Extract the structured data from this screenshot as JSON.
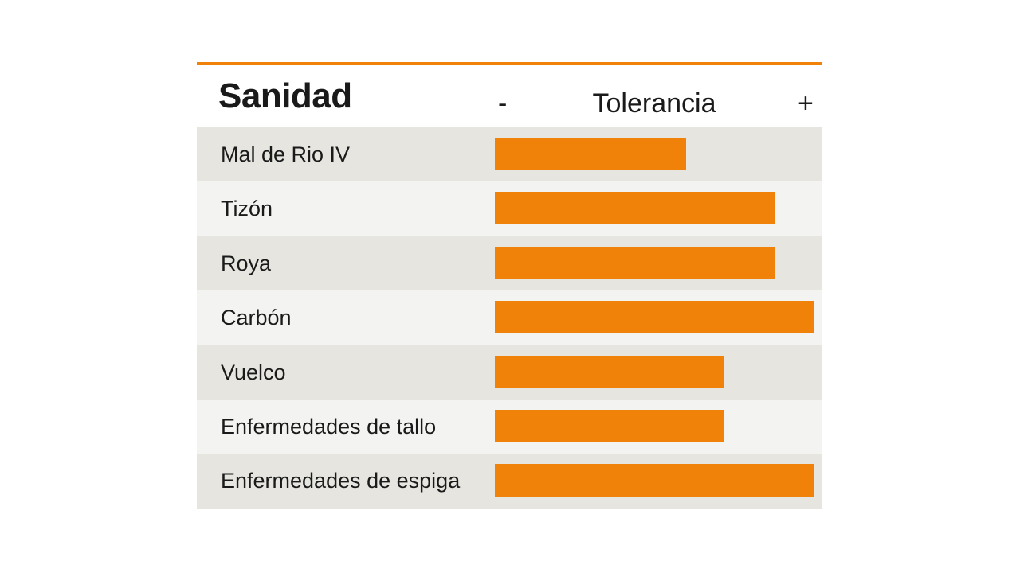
{
  "chart_data": {
    "type": "bar",
    "orientation": "horizontal",
    "title": "Sanidad",
    "xlabel": "Tolerancia",
    "axis_min_label": "-",
    "axis_max_label": "+",
    "categories": [
      "Mal de Rio IV",
      "Tizón",
      "Roya",
      "Carbón",
      "Vuelco",
      "Enfermedades de tallo",
      "Enfermedades de espiga"
    ],
    "values": [
      0.6,
      0.88,
      0.88,
      1.0,
      0.72,
      0.72,
      1.0
    ],
    "xlim": [
      0,
      1
    ]
  },
  "colors": {
    "accent": "#f08109",
    "row_odd": "#e6e5df",
    "row_even": "#f3f4f1",
    "text": "#1a1a1a"
  }
}
